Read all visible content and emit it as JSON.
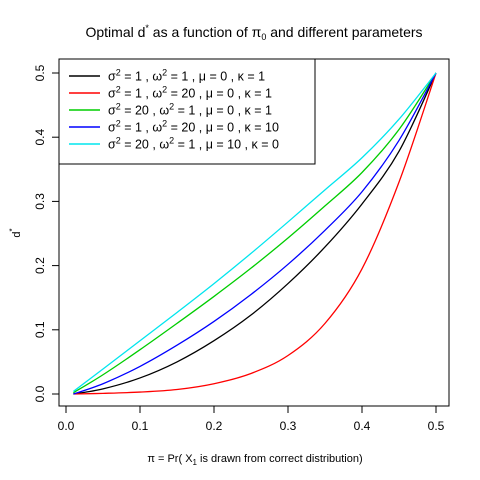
{
  "chart_data": {
    "type": "line",
    "title": "Optimal d* as a function of π0 and different parameters",
    "title_parts": [
      "Optimal d",
      "*",
      " as a function of  ",
      "π",
      "0",
      " and different parameters"
    ],
    "xlabel": "π = Pr( X1 is drawn from correct distribution)",
    "xlabel_parts": [
      "π",
      " =  Pr( X",
      "1",
      " is drawn from correct distribution)"
    ],
    "ylabel": "d*",
    "ylabel_parts": [
      "d",
      "*"
    ],
    "xlim": [
      0.0,
      0.5
    ],
    "ylim": [
      0.0,
      0.5
    ],
    "xticks": [
      "0.0",
      "0.1",
      "0.2",
      "0.3",
      "0.4",
      "0.5"
    ],
    "yticks": [
      "0.0",
      "0.1",
      "0.2",
      "0.3",
      "0.4",
      "0.5"
    ],
    "grid": false,
    "legend_position": "top-left",
    "x": [
      0.01,
      0.05,
      0.1,
      0.15,
      0.2,
      0.25,
      0.3,
      0.35,
      0.4,
      0.45,
      0.5
    ],
    "series": [
      {
        "color": "#000000",
        "label_parts": [
          "σ",
          "2",
          " = 1 ,  ",
          "ω",
          "2",
          " = 1 ,  ",
          "μ",
          " = 0 ,  ",
          "κ",
          " = 1"
        ],
        "values": [
          0.0,
          0.008,
          0.025,
          0.05,
          0.083,
          0.123,
          0.172,
          0.229,
          0.296,
          0.378,
          0.5
        ]
      },
      {
        "color": "#ff0000",
        "label_parts": [
          "σ",
          "2",
          " = 1 ,  ",
          "ω",
          "2",
          " = 20 ,  ",
          "μ",
          " = 0 ,  ",
          "κ",
          " = 1"
        ],
        "values": [
          0.0,
          0.001,
          0.003,
          0.007,
          0.016,
          0.032,
          0.06,
          0.11,
          0.195,
          0.33,
          0.5
        ]
      },
      {
        "color": "#00cd00",
        "label_parts": [
          "σ",
          "2",
          " = 20 ,  ",
          "ω",
          "2",
          " = 1 ,  ",
          "μ",
          " = 0 ,  ",
          "κ",
          " = 1"
        ],
        "values": [
          0.002,
          0.03,
          0.069,
          0.11,
          0.152,
          0.196,
          0.243,
          0.293,
          0.345,
          0.412,
          0.5
        ]
      },
      {
        "color": "#0000ff",
        "label_parts": [
          "σ",
          "2",
          " = 1 ,  ",
          "ω",
          "2",
          " = 20 ,  ",
          "μ",
          " = 0 ,  ",
          "κ",
          " = 10"
        ],
        "values": [
          0.0,
          0.016,
          0.043,
          0.076,
          0.113,
          0.155,
          0.202,
          0.255,
          0.315,
          0.395,
          0.5
        ]
      },
      {
        "color": "#00e5ee",
        "label_parts": [
          "σ",
          "2",
          " = 20 ,  ",
          "ω",
          "2",
          " = 1 ,  ",
          "μ",
          " = 10 ,  ",
          "κ",
          " = 0"
        ],
        "values": [
          0.004,
          0.039,
          0.083,
          0.127,
          0.172,
          0.219,
          0.268,
          0.318,
          0.368,
          0.428,
          0.5
        ]
      }
    ]
  }
}
